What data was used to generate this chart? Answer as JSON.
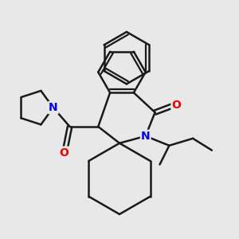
{
  "bg_color": "#e8e8e8",
  "bond_color": "#1a1a1a",
  "N_color": "#0000ee",
  "O_color": "#ee0000",
  "bond_width": 1.8,
  "figsize": [
    3.0,
    3.0
  ],
  "dpi": 100,
  "xlim": [
    0,
    10
  ],
  "ylim": [
    0,
    10
  ]
}
